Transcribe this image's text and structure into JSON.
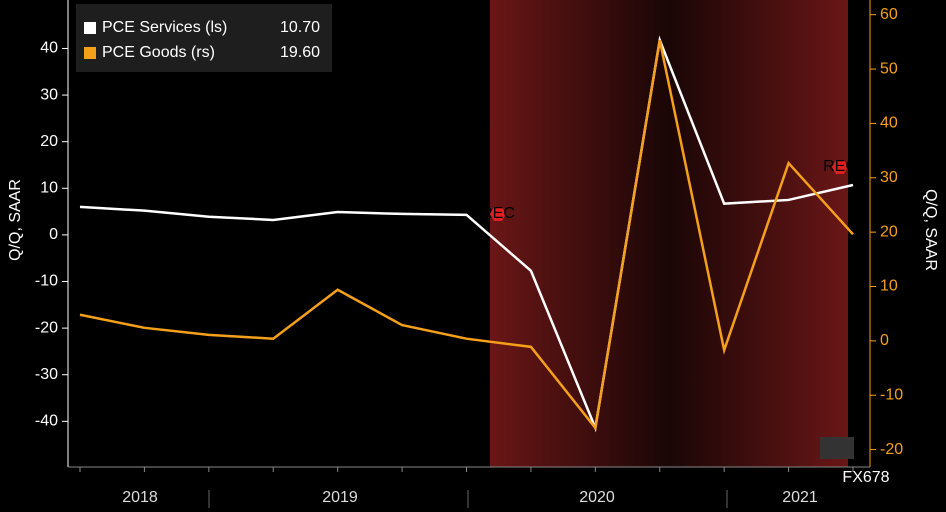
{
  "chart_data": {
    "type": "line",
    "y_label": "Q/Q, SAAR",
    "y2_label": "Q/Q, SAAR",
    "categories": [
      null,
      null,
      null,
      null,
      null,
      null,
      null,
      null,
      null,
      null,
      null,
      null,
      null
    ],
    "x_labels": [
      "2018",
      "2019",
      "2020",
      "2021"
    ],
    "series": [
      {
        "name": "PCE Services (ls)",
        "color": "#ffffff",
        "legend_value": "10.70",
        "values": [
          6.0,
          5.2,
          3.9,
          3.2,
          4.9,
          4.5,
          4.3,
          -7.7,
          -41.4,
          41.8,
          6.7,
          7.5,
          10.7
        ]
      },
      {
        "name": "PCE Goods (rs)",
        "color": "#f5a01a",
        "axis": "y2",
        "legend_value": "19.60",
        "values": [
          4.8,
          2.4,
          1.1,
          0.4,
          9.4,
          2.9,
          0.4,
          -1.1,
          -16.0,
          55.3,
          -1.7,
          32.7,
          19.6
        ]
      }
    ],
    "ylim": [
      -49.8,
      50.4
    ],
    "yticks": [
      -40,
      -30,
      -20,
      -10,
      0,
      10,
      20,
      30,
      40
    ],
    "y2lim": [
      -23.2,
      62.7
    ],
    "y2ticks": [
      -20,
      -10,
      0,
      10,
      20,
      30,
      40,
      50,
      60
    ],
    "recession_label": "REC",
    "watermark": "FX678"
  }
}
